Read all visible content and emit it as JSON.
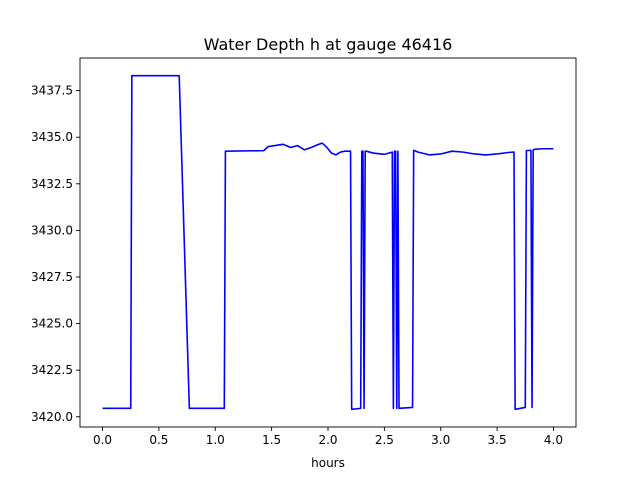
{
  "chart_data": {
    "type": "line",
    "title": "Water Depth h at gauge 46416",
    "xlabel": "hours",
    "ylabel": "",
    "xlim": [
      -0.2,
      4.2
    ],
    "ylim": [
      3419.45,
      3439.25
    ],
    "grid": false,
    "x_ticks": [
      0.0,
      0.5,
      1.0,
      1.5,
      2.0,
      2.5,
      3.0,
      3.5,
      4.0
    ],
    "x_tick_labels": [
      "0.0",
      "0.5",
      "1.0",
      "1.5",
      "2.0",
      "2.5",
      "3.0",
      "3.5",
      "4.0"
    ],
    "y_ticks": [
      3420.0,
      3422.5,
      3425.0,
      3427.5,
      3430.0,
      3432.5,
      3435.0,
      3437.5
    ],
    "y_tick_labels": [
      "3420.0",
      "3422.5",
      "3425.0",
      "3427.5",
      "3430.0",
      "3432.5",
      "3435.0",
      "3437.5"
    ],
    "series": [
      {
        "color": "#0000ff",
        "x": [
          0.0,
          0.25,
          0.26,
          0.68,
          0.77,
          1.08,
          1.09,
          1.43,
          1.47,
          1.53,
          1.6,
          1.67,
          1.73,
          1.79,
          1.85,
          1.91,
          1.95,
          1.99,
          2.03,
          2.07,
          2.11,
          2.15,
          2.2,
          2.21,
          2.29,
          2.3,
          2.31,
          2.32,
          2.33,
          2.34,
          2.4,
          2.5,
          2.57,
          2.58,
          2.59,
          2.6,
          2.61,
          2.62,
          2.63,
          2.7,
          2.75,
          2.76,
          2.8,
          2.9,
          3.0,
          3.1,
          3.2,
          3.3,
          3.4,
          3.5,
          3.6,
          3.65,
          3.66,
          3.75,
          3.76,
          3.8,
          3.81,
          3.82,
          3.83,
          3.9,
          4.0
        ],
        "y": [
          3420.45,
          3420.45,
          3438.3,
          3438.3,
          3420.45,
          3420.45,
          3434.25,
          3434.28,
          3434.5,
          3434.55,
          3434.62,
          3434.45,
          3434.55,
          3434.32,
          3434.45,
          3434.6,
          3434.68,
          3434.45,
          3434.15,
          3434.05,
          3434.2,
          3434.25,
          3434.25,
          3420.4,
          3420.45,
          3434.25,
          3434.25,
          3420.45,
          3434.25,
          3434.25,
          3434.15,
          3434.08,
          3434.2,
          3420.45,
          3434.25,
          3434.25,
          3420.45,
          3434.25,
          3420.45,
          3420.48,
          3420.5,
          3434.3,
          3434.2,
          3434.05,
          3434.1,
          3434.25,
          3434.2,
          3434.1,
          3434.05,
          3434.1,
          3434.18,
          3434.2,
          3420.4,
          3420.5,
          3434.28,
          3434.3,
          3420.5,
          3434.3,
          3434.35,
          3434.38,
          3434.38
        ]
      }
    ]
  }
}
